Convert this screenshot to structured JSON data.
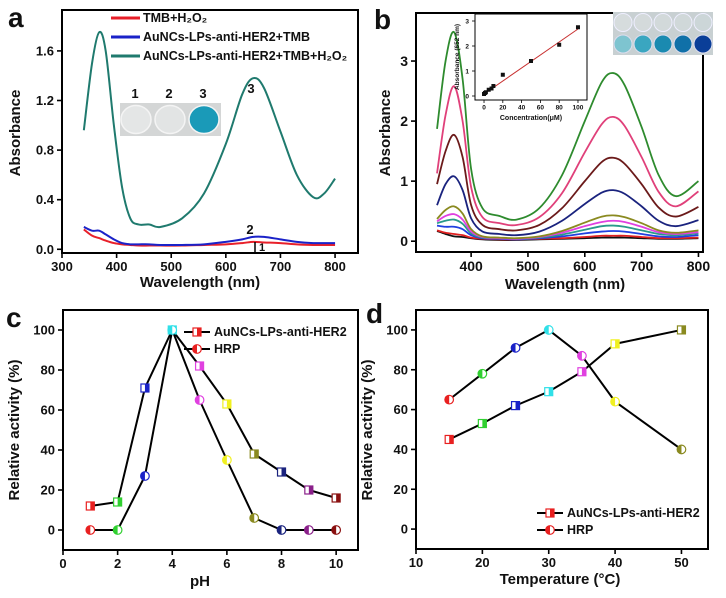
{
  "chart_data": [
    {
      "panel": "a",
      "type": "line",
      "xlabel": "Wavelength (nm)",
      "ylabel": "Absorbance",
      "xlim": [
        300,
        842
      ],
      "ylim": [
        -0.03,
        1.93
      ],
      "xticks": [
        300,
        400,
        500,
        600,
        700,
        800
      ],
      "xtick_labels": [
        "300",
        "400",
        "500",
        "600",
        "700",
        "800"
      ],
      "yticks": [
        0,
        0.4,
        0.8,
        1.2,
        1.6
      ],
      "ytick_labels": [
        "0.0",
        "0.4",
        "0.8",
        "1.2",
        "1.6"
      ],
      "legend_position": "top",
      "x": [
        340,
        355,
        368,
        380,
        395,
        410,
        425,
        440,
        460,
        480,
        520,
        560,
        600,
        630,
        650,
        670,
        700,
        730,
        760,
        780,
        800
      ],
      "series": [
        {
          "name": "TMB+H₂O₂",
          "color": "#e8202a",
          "annotation": "1",
          "values": [
            0.16,
            0.11,
            0.09,
            0.07,
            0.05,
            0.04,
            0.035,
            0.03,
            0.03,
            0.03,
            0.03,
            0.035,
            0.04,
            0.05,
            0.06,
            0.055,
            0.05,
            0.04,
            0.035,
            0.035,
            0.035
          ]
        },
        {
          "name": "AuNCs-LPs-anti-HER2+TMB",
          "color": "#1a22c8",
          "annotation": "2",
          "values": [
            0.18,
            0.15,
            0.15,
            0.12,
            0.08,
            0.05,
            0.04,
            0.04,
            0.04,
            0.035,
            0.035,
            0.04,
            0.06,
            0.08,
            0.1,
            0.1,
            0.08,
            0.06,
            0.05,
            0.05,
            0.05
          ]
        },
        {
          "name": "AuNCs-LPs-anti-HER2+TMB+H₂O₂",
          "color": "#1f7a6e",
          "annotation": "3",
          "values": [
            0.96,
            1.5,
            1.75,
            1.6,
            1.0,
            0.5,
            0.25,
            0.2,
            0.2,
            0.18,
            0.25,
            0.45,
            0.85,
            1.25,
            1.38,
            1.3,
            0.95,
            0.6,
            0.42,
            0.45,
            0.57
          ]
        }
      ],
      "inset_photo": {
        "labels": [
          "1",
          "2",
          "3"
        ],
        "well_colors": [
          "#e4e6e6",
          "#e2e4e4",
          "#1a9ab8"
        ]
      }
    },
    {
      "panel": "b",
      "type": "line",
      "xlabel": "Wavelength (nm)",
      "ylabel": "Absorbance",
      "xlim": [
        303,
        808
      ],
      "ylim": [
        -0.18,
        3.8
      ],
      "xticks": [
        400,
        500,
        600,
        700,
        800
      ],
      "xtick_labels": [
        "400",
        "500",
        "600",
        "700",
        "800"
      ],
      "yticks": [
        0,
        1,
        2,
        3
      ],
      "ytick_labels": [
        "0",
        "1",
        "2",
        "3"
      ],
      "x": [
        340,
        355,
        370,
        385,
        400,
        420,
        450,
        480,
        520,
        560,
        600,
        630,
        650,
        670,
        700,
        730,
        760,
        800
      ],
      "series": [
        {
          "color": "#2e8b2e",
          "values": [
            1.87,
            3.0,
            3.48,
            2.7,
            1.2,
            0.55,
            0.42,
            0.36,
            0.55,
            1.1,
            2.0,
            2.65,
            2.8,
            2.6,
            1.9,
            1.1,
            0.75,
            1.0
          ]
        },
        {
          "color": "#e0407a",
          "values": [
            1.13,
            2.1,
            2.58,
            2.0,
            0.9,
            0.4,
            0.3,
            0.27,
            0.4,
            0.8,
            1.48,
            1.95,
            2.07,
            1.92,
            1.4,
            0.82,
            0.58,
            0.83
          ]
        },
        {
          "color": "#6b1a1a",
          "values": [
            0.95,
            1.5,
            1.77,
            1.4,
            0.6,
            0.27,
            0.2,
            0.18,
            0.27,
            0.55,
            1.0,
            1.32,
            1.39,
            1.29,
            0.95,
            0.56,
            0.41,
            0.57
          ]
        },
        {
          "color": "#1a237e",
          "values": [
            0.6,
            0.95,
            1.08,
            0.85,
            0.38,
            0.16,
            0.12,
            0.1,
            0.16,
            0.34,
            0.62,
            0.81,
            0.85,
            0.79,
            0.58,
            0.34,
            0.25,
            0.35
          ]
        },
        {
          "color": "#8a8a20",
          "values": [
            0.37,
            0.52,
            0.58,
            0.46,
            0.2,
            0.08,
            0.06,
            0.05,
            0.08,
            0.17,
            0.31,
            0.41,
            0.43,
            0.4,
            0.3,
            0.18,
            0.14,
            0.18
          ]
        },
        {
          "color": "#e040e0",
          "values": [
            0.33,
            0.42,
            0.45,
            0.36,
            0.16,
            0.07,
            0.05,
            0.04,
            0.07,
            0.14,
            0.25,
            0.32,
            0.34,
            0.32,
            0.24,
            0.15,
            0.12,
            0.15
          ]
        },
        {
          "color": "#2a9a8a",
          "values": [
            0.3,
            0.34,
            0.36,
            0.29,
            0.13,
            0.06,
            0.05,
            0.04,
            0.06,
            0.11,
            0.19,
            0.25,
            0.26,
            0.24,
            0.18,
            0.12,
            0.1,
            0.13
          ]
        },
        {
          "color": "#2040e0",
          "values": [
            0.26,
            0.24,
            0.24,
            0.2,
            0.1,
            0.05,
            0.04,
            0.03,
            0.05,
            0.08,
            0.13,
            0.16,
            0.17,
            0.16,
            0.12,
            0.08,
            0.07,
            0.1
          ]
        },
        {
          "color": "#e02020",
          "values": [
            0.18,
            0.14,
            0.12,
            0.1,
            0.06,
            0.04,
            0.03,
            0.03,
            0.04,
            0.05,
            0.07,
            0.09,
            0.09,
            0.09,
            0.07,
            0.05,
            0.05,
            0.06
          ]
        },
        {
          "color": "#111111",
          "values": [
            0.17,
            0.12,
            0.08,
            0.07,
            0.05,
            0.03,
            0.02,
            0.02,
            0.03,
            0.04,
            0.05,
            0.06,
            0.06,
            0.06,
            0.05,
            0.04,
            0.04,
            0.05
          ]
        }
      ],
      "inset_photo": {
        "top_row_colors": [
          "#d6dcdd",
          "#d4dadb",
          "#d2d9da",
          "#d0d8d9",
          "#ccd6d8"
        ],
        "bottom_row_colors": [
          "#7ec4d0",
          "#3aa6c0",
          "#1a8ab0",
          "#1070a8",
          "#0a3e98"
        ]
      }
    },
    {
      "panel": "b-inset",
      "type": "scatter",
      "xlabel": "Concentration(μM)",
      "ylabel": "Absorbance (652 nm)",
      "xlim": [
        -9.6,
        109.6
      ],
      "ylim": [
        -0.16,
        3.28
      ],
      "xticks": [
        0,
        20,
        40,
        60,
        80,
        100
      ],
      "xtick_labels": [
        "0",
        "20",
        "40",
        "60",
        "80",
        "100"
      ],
      "yticks": [
        0,
        1,
        2,
        3
      ],
      "ytick_labels": [
        "0",
        "1",
        "2",
        "3"
      ],
      "points": {
        "x": [
          0,
          1,
          2,
          5,
          8,
          10,
          20,
          50,
          80,
          100
        ],
        "y": [
          0.08,
          0.12,
          0.15,
          0.25,
          0.3,
          0.4,
          0.85,
          1.4,
          2.05,
          2.75
        ]
      },
      "fit_line": {
        "x": [
          0,
          100
        ],
        "y": [
          0.08,
          2.68
        ],
        "color": "#c83030"
      }
    },
    {
      "panel": "c",
      "type": "line",
      "xlabel": "pH",
      "ylabel": "Relative activity (%)",
      "xlim": [
        0,
        10.8
      ],
      "ylim": [
        -10,
        110
      ],
      "xticks": [
        0,
        2,
        4,
        6,
        8,
        10
      ],
      "xtick_labels": [
        "0",
        "2",
        "4",
        "6",
        "8",
        "10"
      ],
      "yticks": [
        0,
        20,
        40,
        60,
        80,
        100
      ],
      "ytick_labels": [
        "0",
        "20",
        "40",
        "60",
        "80",
        "100"
      ],
      "legend_position": "top-right",
      "x": [
        1,
        2,
        3,
        4,
        5,
        6,
        7,
        8,
        9,
        10
      ],
      "marker_colors": [
        "#e82020",
        "#30d030",
        "#1a22c8",
        "#30e0e8",
        "#e040e0",
        "#f0f020",
        "#8a8a20",
        "#1a237e",
        "#8a208a",
        "#8a1010"
      ],
      "series": [
        {
          "name": "AuNCs-LPs-anti-HER2",
          "marker": "square",
          "values": [
            12,
            14,
            71,
            100,
            82,
            63,
            38,
            29,
            20,
            16
          ]
        },
        {
          "name": "HRP",
          "marker": "circle",
          "values": [
            0,
            0,
            27,
            100,
            65,
            35,
            6,
            0,
            0,
            0
          ]
        }
      ]
    },
    {
      "panel": "d",
      "type": "line",
      "xlabel": "Temperature (°C)",
      "ylabel": "Relative activity (%)",
      "xlim": [
        10,
        54
      ],
      "ylim": [
        -10,
        110
      ],
      "xticks": [
        10,
        20,
        30,
        40,
        50
      ],
      "xtick_labels": [
        "10",
        "20",
        "30",
        "40",
        "50"
      ],
      "yticks": [
        0,
        20,
        40,
        60,
        80,
        100
      ],
      "ytick_labels": [
        "0",
        "20",
        "40",
        "60",
        "80",
        "100"
      ],
      "legend_position": "bottom-right",
      "x": [
        15,
        20,
        25,
        30,
        35,
        40,
        50
      ],
      "marker_colors": [
        "#e82020",
        "#30d030",
        "#1a22c8",
        "#30e0e8",
        "#e040e0",
        "#f0f020",
        "#8a8a20"
      ],
      "series": [
        {
          "name": "AuNCs-LPs-anti-HER2",
          "marker": "square",
          "values": [
            45,
            53,
            62,
            69,
            79,
            93,
            100
          ]
        },
        {
          "name": "HRP",
          "marker": "circle",
          "values": [
            65,
            78,
            91,
            100,
            87,
            64,
            40
          ]
        }
      ]
    }
  ]
}
